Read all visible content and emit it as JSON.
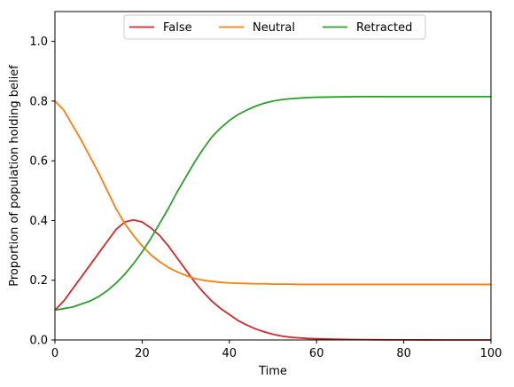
{
  "chart_data": {
    "type": "line",
    "title": "",
    "xlabel": "Time",
    "ylabel": "Proportion of population holding belief",
    "xlim": [
      0,
      100
    ],
    "ylim": [
      0,
      1.1
    ],
    "xticks": [
      0,
      20,
      40,
      60,
      80,
      100
    ],
    "yticks": [
      0.0,
      0.2,
      0.4,
      0.6,
      0.8,
      1.0
    ],
    "xtick_labels": [
      "0",
      "20",
      "40",
      "60",
      "80",
      "100"
    ],
    "ytick_labels": [
      "0.0",
      "0.2",
      "0.4",
      "0.6",
      "0.8",
      "1.0"
    ],
    "grid": false,
    "legend_position": "top-center",
    "x": [
      0,
      2,
      4,
      6,
      8,
      10,
      12,
      14,
      16,
      18,
      20,
      22,
      24,
      26,
      28,
      30,
      32,
      34,
      36,
      38,
      40,
      42,
      44,
      46,
      48,
      50,
      52,
      54,
      56,
      58,
      60,
      65,
      70,
      75,
      80,
      85,
      90,
      95,
      100
    ],
    "series": [
      {
        "name": "False",
        "color": "#d62728",
        "values": [
          0.1,
          0.13,
          0.17,
          0.21,
          0.25,
          0.29,
          0.33,
          0.37,
          0.395,
          0.402,
          0.395,
          0.375,
          0.35,
          0.315,
          0.275,
          0.235,
          0.195,
          0.16,
          0.13,
          0.105,
          0.085,
          0.065,
          0.05,
          0.037,
          0.027,
          0.019,
          0.013,
          0.009,
          0.007,
          0.005,
          0.004,
          0.002,
          0.001,
          0.0005,
          0.0003,
          0.0002,
          0.0001,
          0.0,
          0.0
        ]
      },
      {
        "name": "Neutral",
        "color": "#ff7f0e",
        "values": [
          0.8,
          0.77,
          0.72,
          0.67,
          0.615,
          0.56,
          0.5,
          0.44,
          0.39,
          0.35,
          0.315,
          0.285,
          0.262,
          0.243,
          0.228,
          0.216,
          0.206,
          0.2,
          0.196,
          0.193,
          0.191,
          0.19,
          0.189,
          0.188,
          0.188,
          0.187,
          0.187,
          0.187,
          0.186,
          0.186,
          0.186,
          0.186,
          0.186,
          0.186,
          0.186,
          0.186,
          0.186,
          0.186,
          0.186
        ]
      },
      {
        "name": "Retracted",
        "color": "#2ca02c",
        "values": [
          0.1,
          0.105,
          0.11,
          0.12,
          0.13,
          0.145,
          0.165,
          0.19,
          0.22,
          0.255,
          0.295,
          0.34,
          0.39,
          0.44,
          0.495,
          0.545,
          0.595,
          0.64,
          0.68,
          0.71,
          0.735,
          0.755,
          0.77,
          0.783,
          0.793,
          0.8,
          0.805,
          0.808,
          0.81,
          0.812,
          0.813,
          0.814,
          0.815,
          0.815,
          0.815,
          0.815,
          0.815,
          0.815,
          0.815
        ]
      }
    ]
  }
}
